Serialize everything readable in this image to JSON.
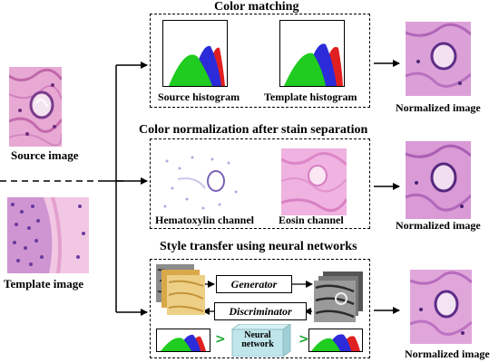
{
  "inputs": {
    "source_label": "Source image",
    "template_label": "Template image"
  },
  "panels": {
    "color_matching": {
      "title": "Color matching",
      "source_hist_label": "Source histogram",
      "template_hist_label": "Template histogram",
      "output_label": "Normalized image"
    },
    "stain_separation": {
      "title": "Color normalization after stain separation",
      "hematoxylin_label": "Hematoxylin channel",
      "eosin_label": "Eosin channel",
      "output_label": "Normalized image"
    },
    "style_transfer": {
      "title": "Style transfer using neural networks",
      "generator_label": "Generator",
      "discriminator_label": "Discriminator",
      "network_label": "Neural network",
      "output_label": "Normalized image"
    }
  },
  "colors": {
    "histogram_green": "#1fcc1f",
    "histogram_blue": "#2b2bd9",
    "histogram_red": "#e02020",
    "tissue_pink": "#e6a8d4",
    "network_cube": "#bfe6ea",
    "accent_arrow": "#17a62f"
  }
}
